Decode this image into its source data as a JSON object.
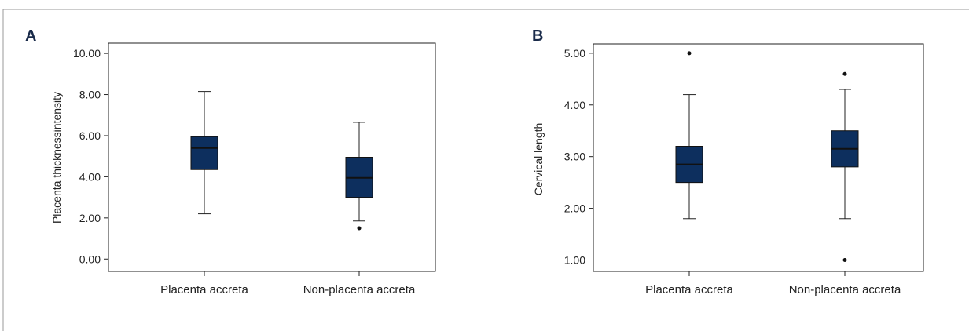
{
  "colors": {
    "box_fill": "#0d2f5e",
    "frame": "#999999",
    "axis": "#222222"
  },
  "chart_data": [
    {
      "type": "box",
      "panel": "A",
      "ylabel": "Placenta thicknessintensity",
      "ylim": [
        -0.6,
        10.5
      ],
      "yticks": [
        "0.00",
        "2.00",
        "4.00",
        "6.00",
        "8.00",
        "10.00"
      ],
      "ytick_values": [
        0,
        2,
        4,
        6,
        8,
        10
      ],
      "categories": [
        "Placenta accreta",
        "Non-placenta accreta"
      ],
      "boxes": [
        {
          "whisker_low": 2.2,
          "q1": 4.35,
          "median": 5.4,
          "q3": 5.95,
          "whisker_high": 8.15,
          "outliers": []
        },
        {
          "whisker_low": 1.85,
          "q1": 3.0,
          "median": 3.95,
          "q3": 4.95,
          "whisker_high": 6.65,
          "outliers": [
            1.5
          ]
        }
      ]
    },
    {
      "type": "box",
      "panel": "B",
      "ylabel": "Cervical length",
      "ylim": [
        0.78,
        5.18
      ],
      "yticks": [
        "1.00",
        "2.00",
        "3.00",
        "4.00",
        "5.00"
      ],
      "ytick_values": [
        1,
        2,
        3,
        4,
        5
      ],
      "categories": [
        "Placenta accreta",
        "Non-placenta accreta"
      ],
      "boxes": [
        {
          "whisker_low": 1.8,
          "q1": 2.5,
          "median": 2.85,
          "q3": 3.2,
          "whisker_high": 4.2,
          "outliers": [
            5.0
          ]
        },
        {
          "whisker_low": 1.8,
          "q1": 2.8,
          "median": 3.15,
          "q3": 3.5,
          "whisker_high": 4.3,
          "outliers": [
            4.6,
            1.0
          ]
        }
      ]
    }
  ]
}
